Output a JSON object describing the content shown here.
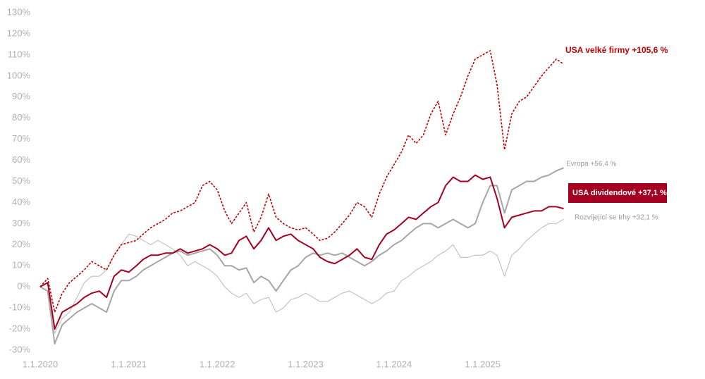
{
  "chart_data": {
    "type": "line",
    "x": [
      "2020-01-01",
      "2020-02-01",
      "2020-03-01",
      "2020-04-01",
      "2020-05-01",
      "2020-06-01",
      "2020-07-01",
      "2020-08-01",
      "2020-09-01",
      "2020-10-01",
      "2020-11-01",
      "2020-12-01",
      "2021-01-01",
      "2021-02-01",
      "2021-03-01",
      "2021-04-01",
      "2021-05-01",
      "2021-06-01",
      "2021-07-01",
      "2021-08-01",
      "2021-09-01",
      "2021-10-01",
      "2021-11-01",
      "2021-12-01",
      "2022-01-01",
      "2022-02-01",
      "2022-03-01",
      "2022-04-01",
      "2022-05-01",
      "2022-06-01",
      "2022-07-01",
      "2022-08-01",
      "2022-09-01",
      "2022-10-01",
      "2022-11-01",
      "2022-12-01",
      "2023-01-01",
      "2023-02-01",
      "2023-03-01",
      "2023-04-01",
      "2023-05-01",
      "2023-06-01",
      "2023-07-01",
      "2023-08-01",
      "2023-09-01",
      "2023-10-01",
      "2023-11-01",
      "2023-12-01",
      "2024-01-01",
      "2024-02-01",
      "2024-03-01",
      "2024-04-01",
      "2024-05-01",
      "2024-06-01",
      "2024-07-01",
      "2024-08-01",
      "2024-09-01",
      "2024-10-01",
      "2024-11-01",
      "2024-12-01",
      "2025-01-01",
      "2025-02-01",
      "2025-03-01",
      "2025-04-01",
      "2025-05-01",
      "2025-06-01",
      "2025-07-01",
      "2025-08-01",
      "2025-09-01",
      "2025-10-01",
      "2025-11-01",
      "2025-12-01"
    ],
    "series": [
      {
        "name": "Rozvíjející se trhy +32,1 %",
        "color": "#bfbfbf",
        "style": "thin",
        "values": [
          0,
          -2,
          -22,
          -15,
          -12,
          -5,
          2,
          5,
          5,
          8,
          15,
          20,
          25,
          24,
          22,
          20,
          22,
          20,
          18,
          15,
          10,
          12,
          10,
          8,
          5,
          0,
          -3,
          -5,
          -3,
          -8,
          -6,
          -5,
          -12,
          -10,
          -6,
          -5,
          -3,
          -5,
          -7,
          -7,
          -5,
          -3,
          -2,
          -4,
          -6,
          -8,
          -6,
          -3,
          -2,
          3,
          5,
          8,
          10,
          12,
          15,
          17,
          20,
          14,
          14,
          15,
          15,
          17,
          15,
          5,
          15,
          18,
          22,
          25,
          28,
          30,
          30,
          32.1
        ]
      },
      {
        "name": "Evropa +56,4 %",
        "color": "#a6a6a6",
        "style": "solid",
        "values": [
          0,
          -2,
          -27,
          -18,
          -15,
          -12,
          -10,
          -8,
          -10,
          -12,
          -2,
          3,
          3,
          5,
          8,
          10,
          12,
          14,
          16,
          17,
          15,
          16,
          17,
          18,
          15,
          10,
          10,
          8,
          9,
          2,
          5,
          3,
          -2,
          3,
          8,
          10,
          14,
          16,
          15,
          16,
          15,
          16,
          14,
          12,
          10,
          12,
          15,
          17,
          20,
          22,
          25,
          28,
          30,
          30,
          28,
          30,
          32,
          30,
          28,
          30,
          40,
          48,
          48,
          35,
          46,
          48,
          50,
          50,
          52,
          53,
          55,
          56.4
        ]
      },
      {
        "name": "USA dividendové +37,1 %",
        "color": "#a50021",
        "style": "solid",
        "label_style": "box",
        "values": [
          0,
          2,
          -20,
          -12,
          -10,
          -8,
          -5,
          -3,
          -2,
          -5,
          5,
          8,
          7,
          10,
          13,
          15,
          15,
          16,
          16,
          18,
          16,
          17,
          18,
          20,
          18,
          15,
          16,
          22,
          24,
          18,
          22,
          28,
          22,
          24,
          25,
          22,
          20,
          18,
          14,
          12,
          11,
          13,
          15,
          18,
          14,
          13,
          20,
          25,
          27,
          30,
          33,
          32,
          35,
          38,
          40,
          48,
          52,
          50,
          50,
          53,
          51,
          52,
          42,
          28,
          33,
          34,
          35,
          36,
          36,
          38,
          38,
          37.1
        ]
      },
      {
        "name": "USA velké firmy +105,6 %",
        "color": "#c00000",
        "style": "dashed",
        "values": [
          0,
          4,
          -12,
          -3,
          2,
          5,
          8,
          12,
          10,
          8,
          15,
          20,
          21,
          22,
          25,
          28,
          30,
          32,
          35,
          36,
          38,
          40,
          48,
          50,
          46,
          36,
          30,
          35,
          40,
          26,
          33,
          44,
          33,
          30,
          28,
          27,
          28,
          25,
          22,
          23,
          26,
          30,
          34,
          40,
          38,
          33,
          44,
          52,
          58,
          64,
          72,
          68,
          72,
          82,
          88,
          72,
          82,
          90,
          100,
          108,
          110,
          112,
          96,
          65,
          82,
          88,
          90,
          95,
          100,
          104,
          108,
          105.6
        ]
      }
    ],
    "xlim": [
      "2020-01-01",
      "2027-01-01"
    ],
    "xticks": [
      {
        "value": "2020-01-01",
        "label": "1.1.2020"
      },
      {
        "value": "2021-01-01",
        "label": "1.1.2021"
      },
      {
        "value": "2022-01-01",
        "label": "1.1.2022"
      },
      {
        "value": "2023-01-01",
        "label": "1.1.2023"
      },
      {
        "value": "2024-01-01",
        "label": "1.1.2024"
      },
      {
        "value": "2025-01-01",
        "label": "1.1.2025"
      }
    ],
    "ylim": [
      -30,
      130
    ],
    "yticks": [
      {
        "value": -30,
        "label": "-30%"
      },
      {
        "value": -20,
        "label": "-20%"
      },
      {
        "value": -10,
        "label": "-10%"
      },
      {
        "value": 0,
        "label": "0%"
      },
      {
        "value": 10,
        "label": "10%"
      },
      {
        "value": 20,
        "label": "20%"
      },
      {
        "value": 30,
        "label": "30%"
      },
      {
        "value": 40,
        "label": "40%"
      },
      {
        "value": 50,
        "label": "50%"
      },
      {
        "value": 60,
        "label": "60%"
      },
      {
        "value": 70,
        "label": "70%"
      },
      {
        "value": 80,
        "label": "80%"
      },
      {
        "value": 90,
        "label": "90%"
      },
      {
        "value": 100,
        "label": "100%"
      },
      {
        "value": 110,
        "label": "110%"
      },
      {
        "value": 120,
        "label": "120%"
      },
      {
        "value": 130,
        "label": "130%"
      }
    ],
    "grid": false
  }
}
